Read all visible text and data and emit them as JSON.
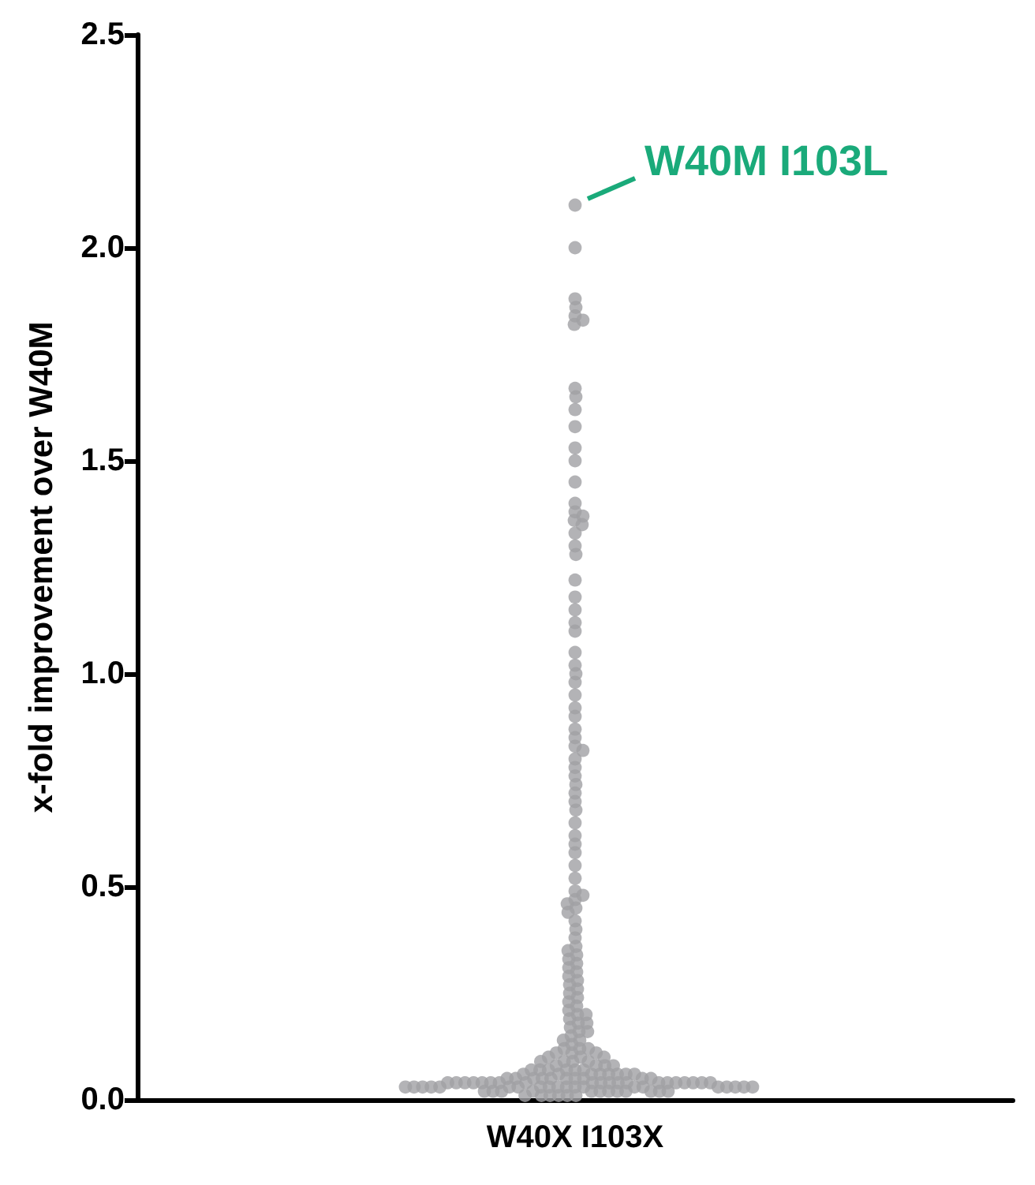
{
  "chart_data": {
    "type": "scatter",
    "ylabel": "x-fold improvement over W40M",
    "categories": [
      "W40X I103X"
    ],
    "series": [
      {
        "color": "#a0a0a4",
        "x": [
          "W40X I103X",
          "W40X I103X",
          "W40X I103X",
          "W40X I103X",
          "W40X I103X",
          "W40X I103X",
          "W40X I103X",
          "W40X I103X",
          "W40X I103X",
          "W40X I103X",
          "W40X I103X",
          "W40X I103X",
          "W40X I103X",
          "W40X I103X",
          "W40X I103X",
          "W40X I103X",
          "W40X I103X",
          "W40X I103X",
          "W40X I103X",
          "W40X I103X",
          "W40X I103X",
          "W40X I103X",
          "W40X I103X",
          "W40X I103X",
          "W40X I103X",
          "W40X I103X",
          "W40X I103X",
          "W40X I103X",
          "W40X I103X",
          "W40X I103X",
          "W40X I103X",
          "W40X I103X",
          "W40X I103X",
          "W40X I103X",
          "W40X I103X",
          "W40X I103X",
          "W40X I103X",
          "W40X I103X",
          "W40X I103X",
          "W40X I103X",
          "W40X I103X",
          "W40X I103X",
          "W40X I103X",
          "W40X I103X",
          "W40X I103X",
          "W40X I103X",
          "W40X I103X",
          "W40X I103X",
          "W40X I103X",
          "W40X I103X",
          "W40X I103X",
          "W40X I103X",
          "W40X I103X",
          "W40X I103X",
          "W40X I103X",
          "W40X I103X",
          "W40X I103X",
          "W40X I103X",
          "W40X I103X",
          "W40X I103X",
          "W40X I103X",
          "W40X I103X",
          "W40X I103X",
          "W40X I103X",
          "W40X I103X",
          "W40X I103X",
          "W40X I103X",
          "W40X I103X",
          "W40X I103X",
          "W40X I103X",
          "W40X I103X",
          "W40X I103X",
          "W40X I103X",
          "W40X I103X",
          "W40X I103X",
          "W40X I103X",
          "W40X I103X",
          "W40X I103X",
          "W40X I103X",
          "W40X I103X",
          "W40X I103X",
          "W40X I103X",
          "W40X I103X",
          "W40X I103X",
          "W40X I103X",
          "W40X I103X",
          "W40X I103X",
          "W40X I103X",
          "W40X I103X",
          "W40X I103X",
          "W40X I103X",
          "W40X I103X",
          "W40X I103X",
          "W40X I103X",
          "W40X I103X",
          "W40X I103X",
          "W40X I103X",
          "W40X I103X",
          "W40X I103X",
          "W40X I103X",
          "W40X I103X",
          "W40X I103X",
          "W40X I103X",
          "W40X I103X",
          "W40X I103X",
          "W40X I103X",
          "W40X I103X",
          "W40X I103X",
          "W40X I103X",
          "W40X I103X",
          "W40X I103X",
          "W40X I103X",
          "W40X I103X",
          "W40X I103X",
          "W40X I103X",
          "W40X I103X",
          "W40X I103X",
          "W40X I103X",
          "W40X I103X",
          "W40X I103X",
          "W40X I103X",
          "W40X I103X",
          "W40X I103X",
          "W40X I103X",
          "W40X I103X",
          "W40X I103X",
          "W40X I103X",
          "W40X I103X",
          "W40X I103X",
          "W40X I103X",
          "W40X I103X",
          "W40X I103X",
          "W40X I103X",
          "W40X I103X",
          "W40X I103X",
          "W40X I103X",
          "W40X I103X",
          "W40X I103X",
          "W40X I103X",
          "W40X I103X",
          "W40X I103X",
          "W40X I103X",
          "W40X I103X",
          "W40X I103X",
          "W40X I103X",
          "W40X I103X",
          "W40X I103X",
          "W40X I103X",
          "W40X I103X",
          "W40X I103X",
          "W40X I103X",
          "W40X I103X",
          "W40X I103X",
          "W40X I103X",
          "W40X I103X",
          "W40X I103X",
          "W40X I103X",
          "W40X I103X",
          "W40X I103X",
          "W40X I103X",
          "W40X I103X",
          "W40X I103X",
          "W40X I103X",
          "W40X I103X",
          "W40X I103X",
          "W40X I103X",
          "W40X I103X",
          "W40X I103X",
          "W40X I103X",
          "W40X I103X",
          "W40X I103X",
          "W40X I103X",
          "W40X I103X",
          "W40X I103X",
          "W40X I103X",
          "W40X I103X",
          "W40X I103X",
          "W40X I103X",
          "W40X I103X",
          "W40X I103X",
          "W40X I103X",
          "W40X I103X",
          "W40X I103X",
          "W40X I103X",
          "W40X I103X",
          "W40X I103X",
          "W40X I103X"
        ],
        "values": [
          2.1,
          2.0,
          1.88,
          1.86,
          1.84,
          1.83,
          1.82,
          1.67,
          1.65,
          1.62,
          1.58,
          1.53,
          1.5,
          1.45,
          1.4,
          1.38,
          1.37,
          1.36,
          1.35,
          1.33,
          1.3,
          1.28,
          1.22,
          1.18,
          1.15,
          1.12,
          1.1,
          1.05,
          1.02,
          1.0,
          0.98,
          0.95,
          0.92,
          0.9,
          0.87,
          0.85,
          0.83,
          0.82,
          0.8,
          0.78,
          0.76,
          0.74,
          0.72,
          0.7,
          0.68,
          0.65,
          0.62,
          0.6,
          0.58,
          0.55,
          0.52,
          0.49,
          0.48,
          0.47,
          0.46,
          0.45,
          0.44,
          0.42,
          0.4,
          0.38,
          0.36,
          0.35,
          0.34,
          0.33,
          0.32,
          0.31,
          0.3,
          0.29,
          0.28,
          0.27,
          0.26,
          0.25,
          0.24,
          0.23,
          0.22,
          0.21,
          0.2,
          0.2,
          0.19,
          0.18,
          0.18,
          0.17,
          0.16,
          0.16,
          0.15,
          0.14,
          0.14,
          0.13,
          0.12,
          0.12,
          0.12,
          0.11,
          0.11,
          0.11,
          0.1,
          0.1,
          0.1,
          0.09,
          0.09,
          0.09,
          0.09,
          0.08,
          0.08,
          0.08,
          0.08,
          0.07,
          0.07,
          0.07,
          0.07,
          0.07,
          0.07,
          0.06,
          0.06,
          0.06,
          0.06,
          0.06,
          0.06,
          0.06,
          0.06,
          0.05,
          0.05,
          0.05,
          0.05,
          0.05,
          0.05,
          0.05,
          0.05,
          0.05,
          0.05,
          0.04,
          0.04,
          0.04,
          0.04,
          0.04,
          0.04,
          0.04,
          0.04,
          0.04,
          0.04,
          0.04,
          0.04,
          0.04,
          0.04,
          0.04,
          0.04,
          0.04,
          0.04,
          0.04,
          0.04,
          0.03,
          0.03,
          0.03,
          0.03,
          0.03,
          0.03,
          0.03,
          0.03,
          0.03,
          0.03,
          0.03,
          0.03,
          0.03,
          0.03,
          0.03,
          0.03,
          0.03,
          0.03,
          0.03,
          0.03,
          0.02,
          0.02,
          0.02,
          0.02,
          0.02,
          0.02,
          0.02,
          0.02,
          0.02,
          0.02,
          0.02,
          0.02,
          0.01,
          0.01,
          0.01,
          0.01,
          0.01,
          0.01
        ]
      }
    ],
    "ylim": [
      0,
      2.5
    ],
    "yticks": [
      {
        "value": 0,
        "label": "0.0"
      },
      {
        "value": 0.5,
        "label": "0.5"
      },
      {
        "value": 1,
        "label": "1.0"
      },
      {
        "value": 1.5,
        "label": "1.5"
      },
      {
        "value": 2,
        "label": "2.0"
      },
      {
        "value": 2.5,
        "label": "2.5"
      }
    ],
    "grid": false,
    "marker": "circle",
    "annotations": [
      {
        "text": "W40M I103L",
        "x": "W40X I103X",
        "y": 2.1
      }
    ]
  }
}
